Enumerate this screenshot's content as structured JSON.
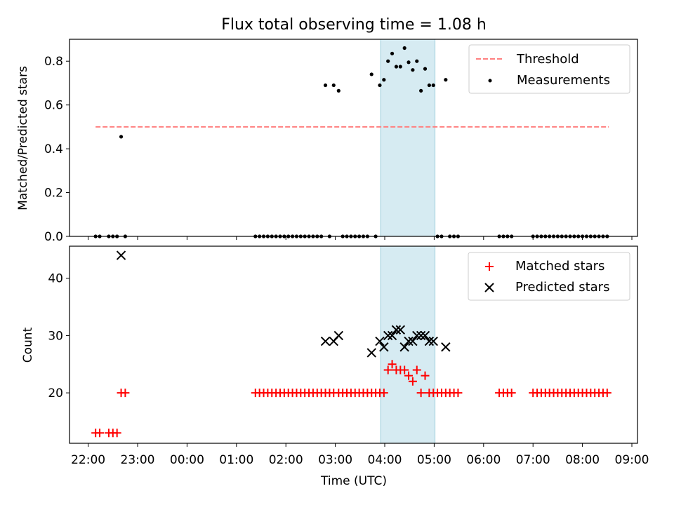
{
  "chart_data": [
    {
      "type": "scatter",
      "title": "Flux total observing time = 1.08 h",
      "xlabel": "",
      "ylabel": "Matched/Predicted stars",
      "ylim": [
        0,
        0.9
      ],
      "xlim": [
        "22:00",
        "09:00"
      ],
      "yticks": [
        0.0,
        0.2,
        0.4,
        0.6,
        0.8
      ],
      "ytick_labels": [
        "0.0",
        "0.2",
        "0.4",
        "0.6",
        "0.8"
      ],
      "legend_placement": "top-right",
      "highlight_span": {
        "start": "03:55",
        "end": "05:01",
        "color": "#add8e6"
      },
      "series": [
        {
          "name": "Threshold",
          "style": "dashed-line",
          "color": "#ff8080",
          "points": [
            [
              "22:09",
              0.5
            ],
            [
              "08:32",
              0.5
            ]
          ]
        },
        {
          "name": "Measurements",
          "style": "dot",
          "color": "#000000",
          "points": [
            [
              "22:09",
              0
            ],
            [
              "22:14",
              0
            ],
            [
              "22:25",
              0
            ],
            [
              "22:30",
              0
            ],
            [
              "22:35",
              0
            ],
            [
              "22:40",
              0.455
            ],
            [
              "22:45",
              0
            ],
            [
              "01:23",
              0
            ],
            [
              "01:28",
              0
            ],
            [
              "01:33",
              0
            ],
            [
              "01:38",
              0
            ],
            [
              "01:43",
              0
            ],
            [
              "01:48",
              0
            ],
            [
              "01:53",
              0
            ],
            [
              "01:58",
              0
            ],
            [
              "02:03",
              0
            ],
            [
              "02:08",
              0
            ],
            [
              "02:13",
              0
            ],
            [
              "02:18",
              0
            ],
            [
              "02:23",
              0
            ],
            [
              "02:28",
              0
            ],
            [
              "02:33",
              0
            ],
            [
              "02:38",
              0
            ],
            [
              "02:43",
              0
            ],
            [
              "02:48",
              0.69
            ],
            [
              "02:53",
              0
            ],
            [
              "02:58",
              0.69
            ],
            [
              "03:04",
              0.665
            ],
            [
              "03:09",
              0
            ],
            [
              "03:14",
              0
            ],
            [
              "03:19",
              0
            ],
            [
              "03:24",
              0
            ],
            [
              "03:29",
              0
            ],
            [
              "03:34",
              0
            ],
            [
              "03:39",
              0
            ],
            [
              "03:44",
              0.74
            ],
            [
              "03:49",
              0
            ],
            [
              "03:54",
              0.69
            ],
            [
              "03:59",
              0.715
            ],
            [
              "04:04",
              0.8
            ],
            [
              "04:09",
              0.835
            ],
            [
              "04:14",
              0.775
            ],
            [
              "04:19",
              0.775
            ],
            [
              "04:24",
              0.86
            ],
            [
              "04:29",
              0.795
            ],
            [
              "04:34",
              0.76
            ],
            [
              "04:39",
              0.8
            ],
            [
              "04:44",
              0.665
            ],
            [
              "04:49",
              0.765
            ],
            [
              "04:54",
              0.69
            ],
            [
              "04:59",
              0.69
            ],
            [
              "05:04",
              0
            ],
            [
              "05:09",
              0
            ],
            [
              "05:14",
              0.715
            ],
            [
              "05:19",
              0
            ],
            [
              "05:24",
              0
            ],
            [
              "05:29",
              0
            ],
            [
              "06:19",
              0
            ],
            [
              "06:24",
              0
            ],
            [
              "06:29",
              0
            ],
            [
              "06:34",
              0
            ],
            [
              "07:00",
              0
            ],
            [
              "07:05",
              0
            ],
            [
              "07:10",
              0
            ],
            [
              "07:15",
              0
            ],
            [
              "07:20",
              0
            ],
            [
              "07:25",
              0
            ],
            [
              "07:30",
              0
            ],
            [
              "07:35",
              0
            ],
            [
              "07:40",
              0
            ],
            [
              "07:45",
              0
            ],
            [
              "07:50",
              0
            ],
            [
              "07:55",
              0
            ],
            [
              "08:00",
              0
            ],
            [
              "08:05",
              0
            ],
            [
              "08:10",
              0
            ],
            [
              "08:15",
              0
            ],
            [
              "08:20",
              0
            ],
            [
              "08:25",
              0
            ],
            [
              "08:30",
              0
            ]
          ]
        }
      ]
    },
    {
      "type": "scatter",
      "title": "",
      "xlabel": "Time (UTC)",
      "ylabel": "Count",
      "ylim": [
        11.2,
        45.6
      ],
      "yticks": [
        20,
        30,
        40
      ],
      "ytick_labels": [
        "20",
        "30",
        "40"
      ],
      "xticks": [
        "22:00",
        "23:00",
        "00:00",
        "01:00",
        "02:00",
        "03:00",
        "04:00",
        "05:00",
        "06:00",
        "07:00",
        "08:00",
        "09:00"
      ],
      "legend_placement": "top-right",
      "highlight_span": {
        "start": "03:55",
        "end": "05:01",
        "color": "#add8e6"
      },
      "series": [
        {
          "name": "Matched stars",
          "style": "plus",
          "color": "#ff0000",
          "points": [
            [
              "22:09",
              13
            ],
            [
              "22:14",
              13
            ],
            [
              "22:25",
              13
            ],
            [
              "22:30",
              13
            ],
            [
              "22:35",
              13
            ],
            [
              "22:40",
              20
            ],
            [
              "22:45",
              20
            ],
            [
              "01:23",
              20
            ],
            [
              "01:28",
              20
            ],
            [
              "01:33",
              20
            ],
            [
              "01:38",
              20
            ],
            [
              "01:43",
              20
            ],
            [
              "01:48",
              20
            ],
            [
              "01:53",
              20
            ],
            [
              "01:58",
              20
            ],
            [
              "02:03",
              20
            ],
            [
              "02:08",
              20
            ],
            [
              "02:13",
              20
            ],
            [
              "02:18",
              20
            ],
            [
              "02:23",
              20
            ],
            [
              "02:28",
              20
            ],
            [
              "02:33",
              20
            ],
            [
              "02:38",
              20
            ],
            [
              "02:43",
              20
            ],
            [
              "02:48",
              20
            ],
            [
              "02:53",
              20
            ],
            [
              "02:58",
              20
            ],
            [
              "03:04",
              20
            ],
            [
              "03:09",
              20
            ],
            [
              "03:14",
              20
            ],
            [
              "03:19",
              20
            ],
            [
              "03:24",
              20
            ],
            [
              "03:29",
              20
            ],
            [
              "03:34",
              20
            ],
            [
              "03:39",
              20
            ],
            [
              "03:44",
              20
            ],
            [
              "03:49",
              20
            ],
            [
              "03:54",
              20
            ],
            [
              "03:59",
              20
            ],
            [
              "04:04",
              24
            ],
            [
              "04:09",
              25
            ],
            [
              "04:14",
              24
            ],
            [
              "04:19",
              24
            ],
            [
              "04:24",
              24
            ],
            [
              "04:29",
              23
            ],
            [
              "04:34",
              22
            ],
            [
              "04:39",
              24
            ],
            [
              "04:44",
              20
            ],
            [
              "04:49",
              23
            ],
            [
              "04:54",
              20
            ],
            [
              "04:59",
              20
            ],
            [
              "05:04",
              20
            ],
            [
              "05:09",
              20
            ],
            [
              "05:14",
              20
            ],
            [
              "05:19",
              20
            ],
            [
              "05:24",
              20
            ],
            [
              "05:29",
              20
            ],
            [
              "06:19",
              20
            ],
            [
              "06:24",
              20
            ],
            [
              "06:29",
              20
            ],
            [
              "06:34",
              20
            ],
            [
              "07:00",
              20
            ],
            [
              "07:05",
              20
            ],
            [
              "07:10",
              20
            ],
            [
              "07:15",
              20
            ],
            [
              "07:20",
              20
            ],
            [
              "07:25",
              20
            ],
            [
              "07:30",
              20
            ],
            [
              "07:35",
              20
            ],
            [
              "07:40",
              20
            ],
            [
              "07:45",
              20
            ],
            [
              "07:50",
              20
            ],
            [
              "07:55",
              20
            ],
            [
              "08:00",
              20
            ],
            [
              "08:05",
              20
            ],
            [
              "08:10",
              20
            ],
            [
              "08:15",
              20
            ],
            [
              "08:20",
              20
            ],
            [
              "08:25",
              20
            ],
            [
              "08:30",
              20
            ]
          ]
        },
        {
          "name": "Predicted stars",
          "style": "x",
          "color": "#000000",
          "points": [
            [
              "22:40",
              44
            ],
            [
              "02:48",
              29
            ],
            [
              "02:58",
              29
            ],
            [
              "03:04",
              30
            ],
            [
              "03:44",
              27
            ],
            [
              "03:54",
              29
            ],
            [
              "03:59",
              28
            ],
            [
              "04:04",
              30
            ],
            [
              "04:09",
              30
            ],
            [
              "04:14",
              31
            ],
            [
              "04:19",
              31
            ],
            [
              "04:24",
              28
            ],
            [
              "04:29",
              29
            ],
            [
              "04:34",
              29
            ],
            [
              "04:39",
              30
            ],
            [
              "04:44",
              30
            ],
            [
              "04:49",
              30
            ],
            [
              "04:54",
              29
            ],
            [
              "04:59",
              29
            ],
            [
              "05:14",
              28
            ]
          ]
        }
      ]
    }
  ]
}
